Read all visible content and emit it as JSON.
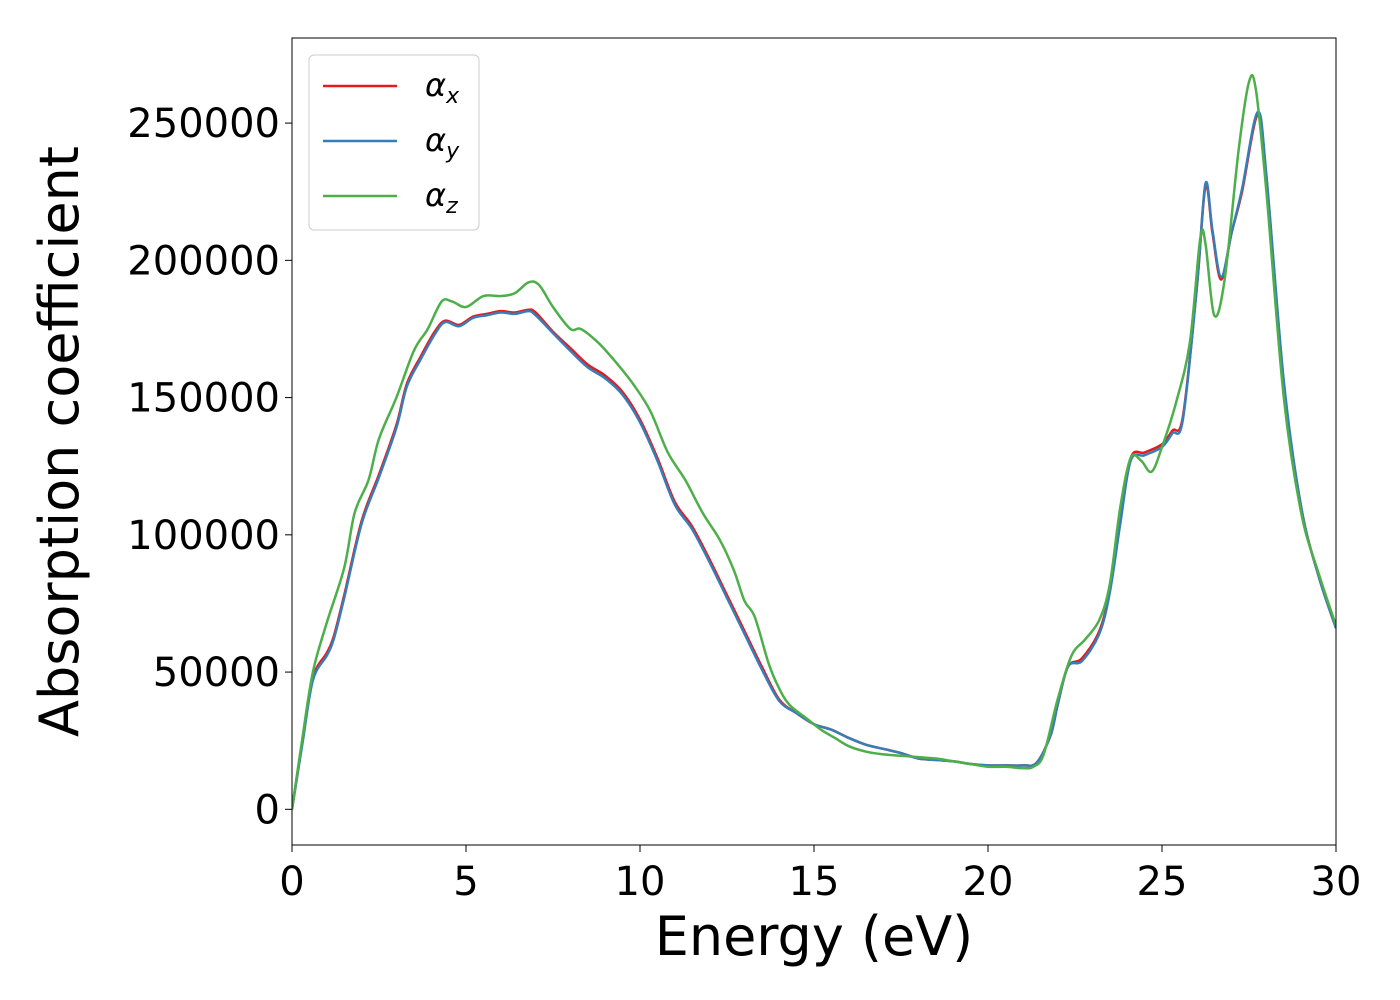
{
  "chart_data": {
    "type": "line",
    "title": "",
    "xlabel": "Energy (eV)",
    "ylabel": "Absorption coefficient",
    "xlim": [
      0,
      30
    ],
    "ylim": [
      -13000,
      281000
    ],
    "xticks": [
      0,
      5,
      10,
      15,
      20,
      25,
      30
    ],
    "xtick_labels": [
      "0",
      "5",
      "10",
      "15",
      "20",
      "25",
      "30"
    ],
    "yticks": [
      0,
      50000,
      100000,
      150000,
      200000,
      250000
    ],
    "ytick_labels": [
      "0",
      "50000",
      "100000",
      "150000",
      "200000",
      "250000"
    ],
    "grid": false,
    "legend_position": "upper-left",
    "series": [
      {
        "name": "αx",
        "base": "α",
        "sub": "x",
        "color": "#e41a1c",
        "points": [
          [
            0,
            0
          ],
          [
            0.3,
            25000
          ],
          [
            0.6,
            48000
          ],
          [
            1.0,
            57000
          ],
          [
            1.2,
            63000
          ],
          [
            1.5,
            78000
          ],
          [
            2.0,
            105000
          ],
          [
            2.5,
            122000
          ],
          [
            3.0,
            140000
          ],
          [
            3.3,
            155000
          ],
          [
            3.7,
            165000
          ],
          [
            4.1,
            174000
          ],
          [
            4.4,
            178000
          ],
          [
            4.8,
            176500
          ],
          [
            5.2,
            179500
          ],
          [
            5.6,
            180500
          ],
          [
            6.0,
            181500
          ],
          [
            6.4,
            181000
          ],
          [
            6.8,
            182000
          ],
          [
            7.0,
            181000
          ],
          [
            7.5,
            174000
          ],
          [
            8.0,
            168000
          ],
          [
            8.5,
            162000
          ],
          [
            9.0,
            158000
          ],
          [
            9.5,
            152000
          ],
          [
            10.0,
            142000
          ],
          [
            10.5,
            128000
          ],
          [
            11.0,
            112000
          ],
          [
            11.5,
            103000
          ],
          [
            12.0,
            91000
          ],
          [
            12.5,
            78000
          ],
          [
            13.0,
            65000
          ],
          [
            13.5,
            52000
          ],
          [
            14.0,
            40000
          ],
          [
            14.5,
            35000
          ],
          [
            15.0,
            31000
          ],
          [
            15.5,
            29000
          ],
          [
            16.0,
            26000
          ],
          [
            16.5,
            23500
          ],
          [
            17.0,
            22000
          ],
          [
            17.5,
            20500
          ],
          [
            18.0,
            18500
          ],
          [
            18.5,
            18000
          ],
          [
            19.0,
            17500
          ],
          [
            19.5,
            16500
          ],
          [
            20.0,
            16000
          ],
          [
            20.5,
            16000
          ],
          [
            21.0,
            16000
          ],
          [
            21.4,
            17000
          ],
          [
            21.8,
            27000
          ],
          [
            22.0,
            38000
          ],
          [
            22.3,
            52000
          ],
          [
            22.7,
            55000
          ],
          [
            23.2,
            65000
          ],
          [
            23.5,
            80000
          ],
          [
            23.8,
            105000
          ],
          [
            24.1,
            128000
          ],
          [
            24.5,
            130000
          ],
          [
            25.0,
            133000
          ],
          [
            25.3,
            138000
          ],
          [
            25.6,
            143000
          ],
          [
            26.0,
            190000
          ],
          [
            26.25,
            227000
          ],
          [
            26.45,
            210000
          ],
          [
            26.7,
            193000
          ],
          [
            27.0,
            210000
          ],
          [
            27.3,
            225000
          ],
          [
            27.75,
            253000
          ],
          [
            28.0,
            230000
          ],
          [
            28.5,
            155000
          ],
          [
            29.0,
            110000
          ],
          [
            29.5,
            85000
          ],
          [
            30.0,
            66000
          ]
        ]
      },
      {
        "name": "αy",
        "base": "α",
        "sub": "y",
        "color": "#377eb8",
        "points": [
          [
            0,
            0
          ],
          [
            0.3,
            24000
          ],
          [
            0.6,
            47000
          ],
          [
            1.0,
            56000
          ],
          [
            1.2,
            62000
          ],
          [
            1.5,
            77000
          ],
          [
            2.0,
            104000
          ],
          [
            2.5,
            121000
          ],
          [
            3.0,
            139000
          ],
          [
            3.3,
            154000
          ],
          [
            3.7,
            164000
          ],
          [
            4.1,
            173000
          ],
          [
            4.4,
            177500
          ],
          [
            4.8,
            176000
          ],
          [
            5.2,
            179000
          ],
          [
            5.6,
            180000
          ],
          [
            6.0,
            181000
          ],
          [
            6.4,
            180500
          ],
          [
            6.8,
            181500
          ],
          [
            7.0,
            180000
          ],
          [
            7.5,
            173500
          ],
          [
            8.0,
            167000
          ],
          [
            8.5,
            161000
          ],
          [
            9.0,
            157000
          ],
          [
            9.5,
            151000
          ],
          [
            10.0,
            141000
          ],
          [
            10.5,
            127000
          ],
          [
            11.0,
            111000
          ],
          [
            11.5,
            102000
          ],
          [
            12.0,
            90000
          ],
          [
            12.5,
            77000
          ],
          [
            13.0,
            64000
          ],
          [
            13.5,
            51000
          ],
          [
            14.0,
            39500
          ],
          [
            14.5,
            35000
          ],
          [
            15.0,
            31000
          ],
          [
            15.5,
            29000
          ],
          [
            16.0,
            26000
          ],
          [
            16.5,
            23500
          ],
          [
            17.0,
            22000
          ],
          [
            17.5,
            20500
          ],
          [
            18.0,
            18500
          ],
          [
            18.5,
            18000
          ],
          [
            19.0,
            17500
          ],
          [
            19.5,
            16500
          ],
          [
            20.0,
            16000
          ],
          [
            20.5,
            16000
          ],
          [
            21.0,
            16000
          ],
          [
            21.4,
            17000
          ],
          [
            21.8,
            27000
          ],
          [
            22.0,
            38000
          ],
          [
            22.3,
            52000
          ],
          [
            22.7,
            54000
          ],
          [
            23.2,
            64000
          ],
          [
            23.5,
            79000
          ],
          [
            23.8,
            104000
          ],
          [
            24.1,
            127000
          ],
          [
            24.5,
            129000
          ],
          [
            25.0,
            132000
          ],
          [
            25.3,
            137000
          ],
          [
            25.6,
            142000
          ],
          [
            26.0,
            190000
          ],
          [
            26.25,
            228000
          ],
          [
            26.45,
            211000
          ],
          [
            26.7,
            194000
          ],
          [
            27.0,
            210000
          ],
          [
            27.3,
            226000
          ],
          [
            27.75,
            254000
          ],
          [
            28.0,
            231000
          ],
          [
            28.5,
            156000
          ],
          [
            29.0,
            110000
          ],
          [
            29.5,
            85000
          ],
          [
            30.0,
            66000
          ]
        ]
      },
      {
        "name": "αz",
        "base": "α",
        "sub": "z",
        "color": "#4daf4a",
        "points": [
          [
            0,
            0
          ],
          [
            0.3,
            26000
          ],
          [
            0.6,
            50000
          ],
          [
            1.0,
            68000
          ],
          [
            1.5,
            88000
          ],
          [
            1.8,
            108000
          ],
          [
            2.2,
            120000
          ],
          [
            2.5,
            135000
          ],
          [
            3.0,
            150000
          ],
          [
            3.5,
            167000
          ],
          [
            3.9,
            175000
          ],
          [
            4.3,
            185000
          ],
          [
            4.6,
            185000
          ],
          [
            5.0,
            183000
          ],
          [
            5.5,
            187000
          ],
          [
            6.0,
            187000
          ],
          [
            6.4,
            188000
          ],
          [
            6.8,
            192000
          ],
          [
            7.1,
            191000
          ],
          [
            7.5,
            183000
          ],
          [
            8.0,
            175000
          ],
          [
            8.3,
            175000
          ],
          [
            8.8,
            170000
          ],
          [
            9.3,
            163000
          ],
          [
            9.8,
            155000
          ],
          [
            10.3,
            145000
          ],
          [
            10.8,
            130000
          ],
          [
            11.3,
            120000
          ],
          [
            11.8,
            108000
          ],
          [
            12.3,
            98000
          ],
          [
            12.7,
            87000
          ],
          [
            13.0,
            76000
          ],
          [
            13.3,
            70000
          ],
          [
            13.7,
            53000
          ],
          [
            14.0,
            44000
          ],
          [
            14.3,
            38000
          ],
          [
            14.8,
            33000
          ],
          [
            15.2,
            29000
          ],
          [
            15.6,
            26000
          ],
          [
            16.0,
            23000
          ],
          [
            16.5,
            21000
          ],
          [
            17.0,
            20000
          ],
          [
            17.5,
            19500
          ],
          [
            18.0,
            19000
          ],
          [
            18.5,
            18500
          ],
          [
            19.0,
            17500
          ],
          [
            19.5,
            16500
          ],
          [
            20.0,
            15500
          ],
          [
            20.5,
            15500
          ],
          [
            21.0,
            15000
          ],
          [
            21.3,
            15500
          ],
          [
            21.6,
            20000
          ],
          [
            22.0,
            40000
          ],
          [
            22.4,
            56000
          ],
          [
            22.8,
            62000
          ],
          [
            23.2,
            69000
          ],
          [
            23.5,
            82000
          ],
          [
            23.8,
            110000
          ],
          [
            24.1,
            128000
          ],
          [
            24.4,
            127000
          ],
          [
            24.7,
            123000
          ],
          [
            25.0,
            132000
          ],
          [
            25.4,
            148000
          ],
          [
            25.8,
            170000
          ],
          [
            26.1,
            208000
          ],
          [
            26.25,
            206000
          ],
          [
            26.5,
            180000
          ],
          [
            26.8,
            193000
          ],
          [
            27.2,
            240000
          ],
          [
            27.5,
            265000
          ],
          [
            27.7,
            262000
          ],
          [
            28.0,
            225000
          ],
          [
            28.5,
            150000
          ],
          [
            29.0,
            108000
          ],
          [
            29.5,
            86000
          ],
          [
            30.0,
            67000
          ]
        ]
      }
    ]
  }
}
